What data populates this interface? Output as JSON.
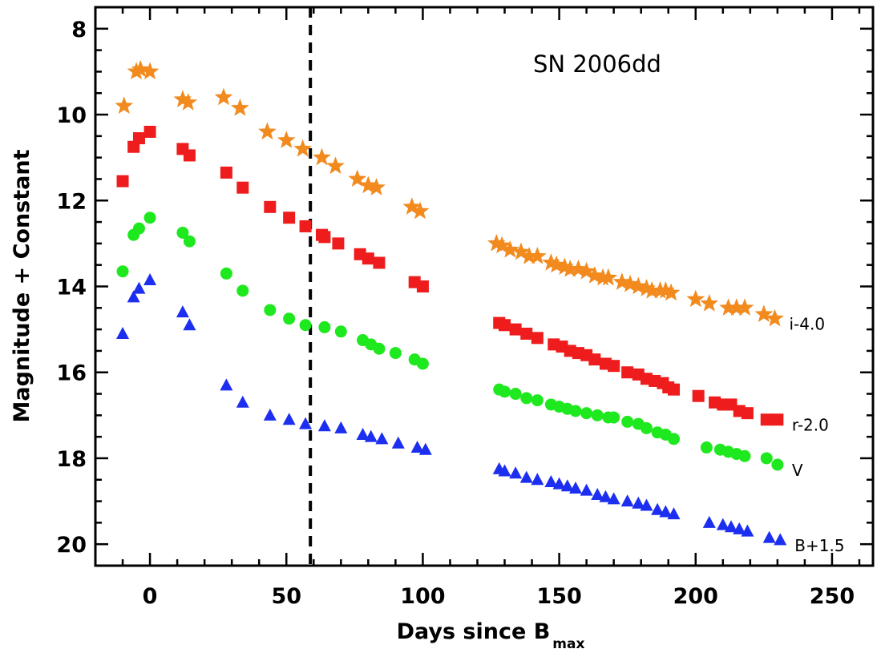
{
  "chart_data": {
    "type": "scatter",
    "title": "",
    "annotation": "SN 2006dd",
    "xlabel": "Days since B",
    "xlabel_subscript": "max",
    "ylabel": "Magnitude + Constant",
    "xlim": [
      -20,
      265
    ],
    "ylim": [
      20.5,
      7.5
    ],
    "y_inverted": true,
    "x_ticks": [
      0,
      50,
      100,
      150,
      200,
      250
    ],
    "y_ticks": [
      8,
      10,
      12,
      14,
      16,
      18,
      20
    ],
    "grid": false,
    "vertical_line": {
      "x": 58.8,
      "style": "dashed"
    },
    "series": [
      {
        "name": "i-4.0",
        "marker": "star",
        "color": "#f28a1e",
        "points": [
          [
            -9.5,
            9.8
          ],
          [
            -5,
            9.0
          ],
          [
            -3.5,
            8.95
          ],
          [
            0,
            9.0
          ],
          [
            12,
            9.65
          ],
          [
            14,
            9.72
          ],
          [
            27,
            9.6
          ],
          [
            33,
            9.85
          ],
          [
            43,
            10.4
          ],
          [
            50,
            10.6
          ],
          [
            56,
            10.8
          ],
          [
            63,
            11.0
          ],
          [
            68,
            11.2
          ],
          [
            76,
            11.5
          ],
          [
            80,
            11.65
          ],
          [
            83,
            11.7
          ],
          [
            96,
            12.15
          ],
          [
            99,
            12.25
          ],
          [
            127,
            13.0
          ],
          [
            129,
            13.05
          ],
          [
            132,
            13.15
          ],
          [
            136,
            13.2
          ],
          [
            139,
            13.3
          ],
          [
            142,
            13.3
          ],
          [
            147,
            13.45
          ],
          [
            149,
            13.5
          ],
          [
            152,
            13.55
          ],
          [
            154,
            13.6
          ],
          [
            157,
            13.6
          ],
          [
            160,
            13.65
          ],
          [
            163,
            13.75
          ],
          [
            166,
            13.8
          ],
          [
            168,
            13.8
          ],
          [
            173,
            13.9
          ],
          [
            176,
            13.95
          ],
          [
            179,
            14.0
          ],
          [
            182,
            14.05
          ],
          [
            184,
            14.1
          ],
          [
            187,
            14.1
          ],
          [
            189,
            14.1
          ],
          [
            191,
            14.15
          ],
          [
            200,
            14.3
          ],
          [
            205,
            14.4
          ],
          [
            212,
            14.5
          ],
          [
            215,
            14.5
          ],
          [
            218,
            14.5
          ],
          [
            225,
            14.65
          ],
          [
            229,
            14.75
          ]
        ]
      },
      {
        "name": "r-2.0",
        "marker": "square",
        "color": "#ee1c1c",
        "points": [
          [
            -10,
            11.55
          ],
          [
            -6,
            10.75
          ],
          [
            -4,
            10.55
          ],
          [
            0,
            10.4
          ],
          [
            12,
            10.8
          ],
          [
            14.5,
            10.95
          ],
          [
            28,
            11.35
          ],
          [
            34,
            11.7
          ],
          [
            44,
            12.15
          ],
          [
            51,
            12.4
          ],
          [
            57,
            12.6
          ],
          [
            63,
            12.8
          ],
          [
            64,
            12.85
          ],
          [
            69,
            13.0
          ],
          [
            77,
            13.25
          ],
          [
            80,
            13.35
          ],
          [
            84,
            13.45
          ],
          [
            97,
            13.9
          ],
          [
            100,
            14.0
          ],
          [
            128,
            14.85
          ],
          [
            130,
            14.9
          ],
          [
            134,
            15.0
          ],
          [
            138,
            15.1
          ],
          [
            142,
            15.2
          ],
          [
            148,
            15.35
          ],
          [
            151,
            15.4
          ],
          [
            154,
            15.5
          ],
          [
            157,
            15.55
          ],
          [
            160,
            15.6
          ],
          [
            163,
            15.7
          ],
          [
            167,
            15.8
          ],
          [
            170,
            15.85
          ],
          [
            175,
            16.0
          ],
          [
            179,
            16.05
          ],
          [
            182,
            16.15
          ],
          [
            185,
            16.2
          ],
          [
            188,
            16.25
          ],
          [
            190,
            16.35
          ],
          [
            192,
            16.4
          ],
          [
            201,
            16.55
          ],
          [
            207,
            16.7
          ],
          [
            210,
            16.75
          ],
          [
            213,
            16.75
          ],
          [
            216,
            16.9
          ],
          [
            219,
            16.95
          ],
          [
            226,
            17.1
          ],
          [
            230,
            17.1
          ]
        ]
      },
      {
        "name": "V",
        "marker": "circle",
        "color": "#1ee81e",
        "points": [
          [
            -10,
            13.65
          ],
          [
            -6,
            12.8
          ],
          [
            -4,
            12.65
          ],
          [
            0,
            12.4
          ],
          [
            12,
            12.75
          ],
          [
            14.5,
            12.95
          ],
          [
            28,
            13.7
          ],
          [
            34,
            14.1
          ],
          [
            44,
            14.55
          ],
          [
            51,
            14.75
          ],
          [
            57,
            14.9
          ],
          [
            64,
            14.95
          ],
          [
            70,
            15.05
          ],
          [
            78,
            15.25
          ],
          [
            81,
            15.35
          ],
          [
            84,
            15.45
          ],
          [
            90,
            15.55
          ],
          [
            97,
            15.7
          ],
          [
            100,
            15.8
          ],
          [
            128,
            16.4
          ],
          [
            130,
            16.45
          ],
          [
            134,
            16.5
          ],
          [
            138,
            16.6
          ],
          [
            142,
            16.65
          ],
          [
            147,
            16.75
          ],
          [
            150,
            16.8
          ],
          [
            153,
            16.85
          ],
          [
            156,
            16.9
          ],
          [
            160,
            16.95
          ],
          [
            164,
            17.0
          ],
          [
            168,
            17.05
          ],
          [
            170,
            17.05
          ],
          [
            175,
            17.15
          ],
          [
            179,
            17.2
          ],
          [
            182,
            17.3
          ],
          [
            186,
            17.4
          ],
          [
            189,
            17.45
          ],
          [
            192,
            17.55
          ],
          [
            204,
            17.75
          ],
          [
            209,
            17.8
          ],
          [
            212,
            17.85
          ],
          [
            215,
            17.9
          ],
          [
            218,
            17.95
          ],
          [
            226,
            18.0
          ],
          [
            230,
            18.15
          ]
        ]
      },
      {
        "name": "B+1.5",
        "marker": "triangle",
        "color": "#1c2ef0",
        "points": [
          [
            -10,
            15.1
          ],
          [
            -6,
            14.25
          ],
          [
            -4,
            14.05
          ],
          [
            0,
            13.85
          ],
          [
            12,
            14.6
          ],
          [
            14.5,
            14.9
          ],
          [
            28,
            16.3
          ],
          [
            34,
            16.7
          ],
          [
            44,
            17.0
          ],
          [
            51,
            17.1
          ],
          [
            57,
            17.2
          ],
          [
            64,
            17.25
          ],
          [
            70,
            17.3
          ],
          [
            78,
            17.45
          ],
          [
            81,
            17.5
          ],
          [
            85,
            17.55
          ],
          [
            91,
            17.65
          ],
          [
            98,
            17.75
          ],
          [
            101,
            17.8
          ],
          [
            128,
            18.25
          ],
          [
            130,
            18.3
          ],
          [
            134,
            18.35
          ],
          [
            138,
            18.45
          ],
          [
            142,
            18.5
          ],
          [
            147,
            18.55
          ],
          [
            150,
            18.6
          ],
          [
            153,
            18.65
          ],
          [
            156,
            18.7
          ],
          [
            160,
            18.75
          ],
          [
            164,
            18.85
          ],
          [
            167,
            18.9
          ],
          [
            170,
            18.95
          ],
          [
            175,
            19.0
          ],
          [
            179,
            19.05
          ],
          [
            182,
            19.1
          ],
          [
            186,
            19.2
          ],
          [
            189,
            19.25
          ],
          [
            192,
            19.3
          ],
          [
            205,
            19.5
          ],
          [
            210,
            19.55
          ],
          [
            213,
            19.6
          ],
          [
            216,
            19.65
          ],
          [
            219,
            19.7
          ],
          [
            227,
            19.85
          ],
          [
            231,
            19.9
          ]
        ]
      }
    ]
  }
}
